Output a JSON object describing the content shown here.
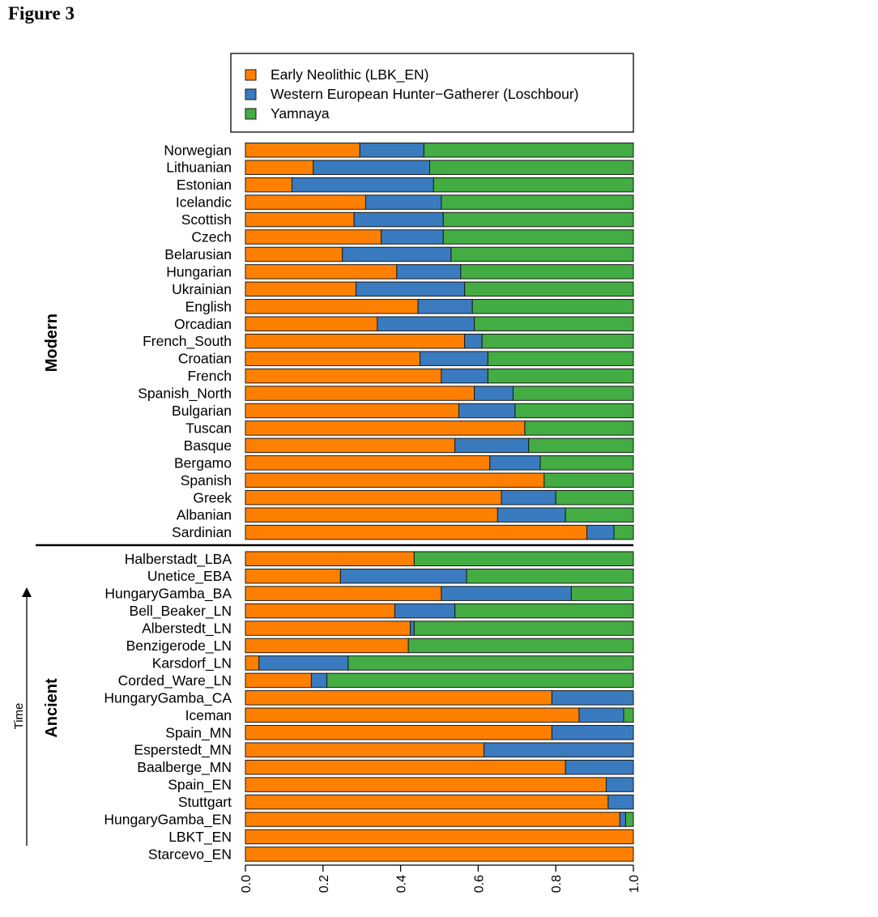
{
  "figure": {
    "title": "Figure 3"
  },
  "colors": {
    "en": "#ff8000",
    "whg": "#3a7bbf",
    "yam": "#43ac43",
    "stroke": "#1a1a1a"
  },
  "chart_data": {
    "type": "bar",
    "orientation": "horizontal",
    "stacked": true,
    "xlim": [
      0,
      1
    ],
    "xticks": [
      "0.0",
      "0.2",
      "0.4",
      "0.6",
      "0.8",
      "1.0"
    ],
    "legend": {
      "placement": "top",
      "entries": [
        "Early Neolithic (LBK_EN)",
        "Western European Hunter−Gatherer (Loschbour)",
        "Yamnaya"
      ]
    },
    "series_names": [
      "Early Neolithic (LBK_EN)",
      "Western European Hunter−Gatherer (Loschbour)",
      "Yamnaya"
    ],
    "groups": [
      {
        "name": "Modern",
        "rows": [
          {
            "label": "Norwegian",
            "values": [
              0.295,
              0.165,
              0.54
            ]
          },
          {
            "label": "Lithuanian",
            "values": [
              0.175,
              0.3,
              0.525
            ]
          },
          {
            "label": "Estonian",
            "values": [
              0.12,
              0.365,
              0.515
            ]
          },
          {
            "label": "Icelandic",
            "values": [
              0.31,
              0.195,
              0.495
            ]
          },
          {
            "label": "Scottish",
            "values": [
              0.28,
              0.23,
              0.49
            ]
          },
          {
            "label": "Czech",
            "values": [
              0.35,
              0.16,
              0.49
            ]
          },
          {
            "label": "Belarusian",
            "values": [
              0.25,
              0.28,
              0.47
            ]
          },
          {
            "label": "Hungarian",
            "values": [
              0.39,
              0.165,
              0.445
            ]
          },
          {
            "label": "Ukrainian",
            "values": [
              0.285,
              0.28,
              0.435
            ]
          },
          {
            "label": "English",
            "values": [
              0.445,
              0.14,
              0.415
            ]
          },
          {
            "label": "Orcadian",
            "values": [
              0.34,
              0.25,
              0.41
            ]
          },
          {
            "label": "French_South",
            "values": [
              0.565,
              0.045,
              0.39
            ]
          },
          {
            "label": "Croatian",
            "values": [
              0.45,
              0.175,
              0.375
            ]
          },
          {
            "label": "French",
            "values": [
              0.505,
              0.12,
              0.375
            ]
          },
          {
            "label": "Spanish_North",
            "values": [
              0.59,
              0.1,
              0.31
            ]
          },
          {
            "label": "Bulgarian",
            "values": [
              0.55,
              0.145,
              0.305
            ]
          },
          {
            "label": "Tuscan",
            "values": [
              0.72,
              0.0,
              0.28
            ]
          },
          {
            "label": "Basque",
            "values": [
              0.54,
              0.19,
              0.27
            ]
          },
          {
            "label": "Bergamo",
            "values": [
              0.63,
              0.13,
              0.24
            ]
          },
          {
            "label": "Spanish",
            "values": [
              0.77,
              0.0,
              0.23
            ]
          },
          {
            "label": "Greek",
            "values": [
              0.66,
              0.14,
              0.2
            ]
          },
          {
            "label": "Albanian",
            "values": [
              0.65,
              0.175,
              0.175
            ]
          },
          {
            "label": "Sardinian",
            "values": [
              0.88,
              0.07,
              0.05
            ]
          }
        ]
      },
      {
        "name": "Ancient",
        "rows": [
          {
            "label": "Halberstadt_LBA",
            "values": [
              0.435,
              0.0,
              0.565
            ]
          },
          {
            "label": "Unetice_EBA",
            "values": [
              0.245,
              0.325,
              0.43
            ]
          },
          {
            "label": "HungaryGamba_BA",
            "values": [
              0.505,
              0.335,
              0.16
            ]
          },
          {
            "label": "Bell_Beaker_LN",
            "values": [
              0.385,
              0.155,
              0.46
            ]
          },
          {
            "label": "Alberstedt_LN",
            "values": [
              0.425,
              0.01,
              0.565
            ]
          },
          {
            "label": "Benzigerode_LN",
            "values": [
              0.42,
              0.0,
              0.58
            ]
          },
          {
            "label": "Karsdorf_LN",
            "values": [
              0.035,
              0.23,
              0.735
            ]
          },
          {
            "label": "Corded_Ware_LN",
            "values": [
              0.17,
              0.04,
              0.79
            ]
          },
          {
            "label": "HungaryGamba_CA",
            "values": [
              0.79,
              0.21,
              0.0
            ]
          },
          {
            "label": "Iceman",
            "values": [
              0.86,
              0.115,
              0.025
            ]
          },
          {
            "label": "Spain_MN",
            "values": [
              0.79,
              0.21,
              0.0
            ]
          },
          {
            "label": "Esperstedt_MN",
            "values": [
              0.615,
              0.385,
              0.0
            ]
          },
          {
            "label": "Baalberge_MN",
            "values": [
              0.825,
              0.175,
              0.0
            ]
          },
          {
            "label": "Spain_EN",
            "values": [
              0.93,
              0.07,
              0.0
            ]
          },
          {
            "label": "Stuttgart",
            "values": [
              0.935,
              0.065,
              0.0
            ]
          },
          {
            "label": "HungaryGamba_EN",
            "values": [
              0.965,
              0.015,
              0.02
            ]
          },
          {
            "label": "LBKT_EN",
            "values": [
              1.0,
              0.0,
              0.0
            ]
          },
          {
            "label": "Starcevo_EN",
            "values": [
              1.0,
              0.0,
              0.0
            ]
          }
        ]
      }
    ],
    "annotations": [
      "Time"
    ]
  }
}
